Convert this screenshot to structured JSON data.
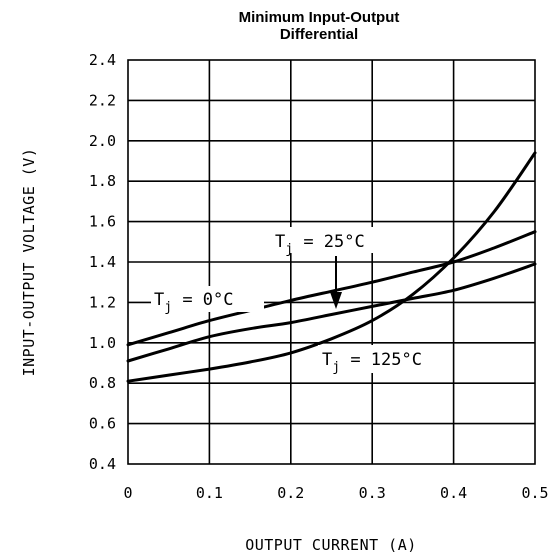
{
  "chart_data": {
    "type": "line",
    "title": [
      "Minimum Input-Output",
      "Differential"
    ],
    "xlabel": "OUTPUT CURRENT (A)",
    "ylabel": "INPUT-OUTPUT VOLTAGE (V)",
    "xlim": [
      0,
      0.5
    ],
    "ylim": [
      0.4,
      2.4
    ],
    "x_ticks": [
      0,
      0.1,
      0.2,
      0.3,
      0.4,
      0.5
    ],
    "x_tick_labels": [
      "0",
      "0.1",
      "0.2",
      "0.3",
      "0.4",
      "0.5"
    ],
    "y_ticks": [
      0.4,
      0.6,
      0.8,
      1.0,
      1.2,
      1.4,
      1.6,
      1.8,
      2.0,
      2.2,
      2.4
    ],
    "y_tick_labels": [
      "0.4",
      "0.6",
      "0.8",
      "1.0",
      "1.2",
      "1.4",
      "1.6",
      "1.8",
      "2.0",
      "2.2",
      "2.4"
    ],
    "grid": true,
    "series": [
      {
        "name": "Tj = 0°C",
        "label_main": "T",
        "label_sub": "j",
        "label_rest": " = 0°C",
        "x": [
          0,
          0.05,
          0.1,
          0.15,
          0.2,
          0.25,
          0.3,
          0.35,
          0.4,
          0.45,
          0.5
        ],
        "y": [
          0.99,
          1.05,
          1.11,
          1.16,
          1.21,
          1.255,
          1.3,
          1.35,
          1.4,
          1.47,
          1.55
        ]
      },
      {
        "name": "Tj = 25°C",
        "label_main": "T",
        "label_sub": "j",
        "label_rest": " = 25°C",
        "x": [
          0,
          0.05,
          0.1,
          0.15,
          0.2,
          0.25,
          0.3,
          0.35,
          0.4,
          0.45,
          0.5
        ],
        "y": [
          0.91,
          0.97,
          1.03,
          1.07,
          1.1,
          1.14,
          1.18,
          1.22,
          1.26,
          1.32,
          1.39
        ]
      },
      {
        "name": "Tj = 125°C",
        "label_main": "T",
        "label_sub": "j",
        "label_rest": " = 125°C",
        "x": [
          0,
          0.05,
          0.1,
          0.15,
          0.2,
          0.25,
          0.3,
          0.35,
          0.4,
          0.45,
          0.5
        ],
        "y": [
          0.81,
          0.84,
          0.87,
          0.905,
          0.95,
          1.02,
          1.11,
          1.24,
          1.42,
          1.65,
          1.94
        ]
      }
    ]
  }
}
